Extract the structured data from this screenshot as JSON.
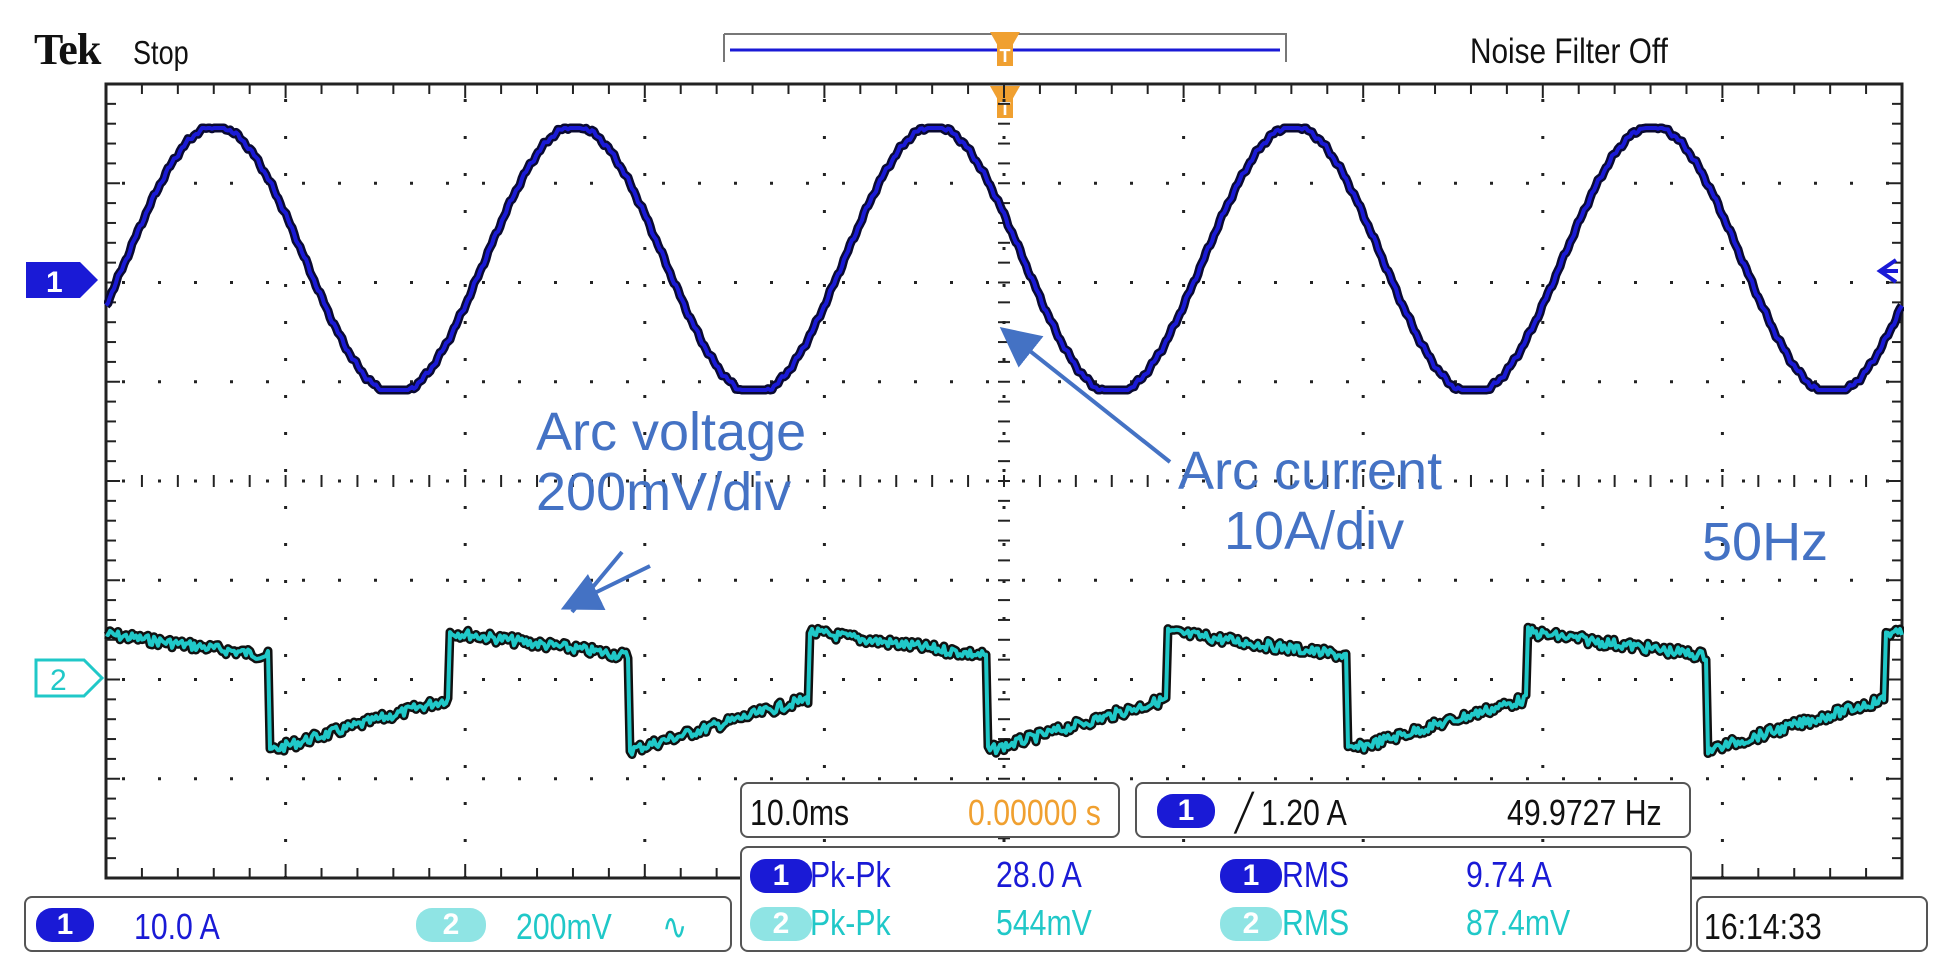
{
  "header": {
    "brand": "Tek",
    "acquisition_state": "Stop",
    "noise_filter": "Noise Filter Off"
  },
  "markers": {
    "trigger_position_label": "T",
    "ch1_marker": "1",
    "ch2_marker": "2"
  },
  "annotations": {
    "arc_voltage_line1": "Arc voltage",
    "arc_voltage_line2": "200mV/div",
    "arc_current_line1": "Arc current",
    "arc_current_line2": "10A/div",
    "frequency": "50Hz"
  },
  "timebase": {
    "horizontal_scale": "10.0ms",
    "position": "0.00000 s"
  },
  "trigger": {
    "channel": "1",
    "slope_symbol": "╱",
    "level": "1.20 A",
    "frequency": "49.9727 Hz"
  },
  "measurements": [
    {
      "channel": "1",
      "type": "Pk-Pk",
      "value": "28.0 A"
    },
    {
      "channel": "1",
      "type": "RMS",
      "value": "9.74 A"
    },
    {
      "channel": "2",
      "type": "Pk-Pk",
      "value": "544mV"
    },
    {
      "channel": "2",
      "type": "RMS",
      "value": "87.4mV"
    }
  ],
  "channels": [
    {
      "id": "1",
      "scale": "10.0 A",
      "coupling_symbol": ""
    },
    {
      "id": "2",
      "scale": "200mV",
      "coupling_symbol": "∿"
    }
  ],
  "clock": "16:14:33",
  "colors": {
    "ch1": "#1a1ad6",
    "ch2": "#20c8c8",
    "trigger": "#f0a030",
    "annotation": "#4472c4",
    "grid": "#222222"
  },
  "waveforms": {
    "ch1": {
      "shape": "sine",
      "frequency_hz": 50,
      "peak_to_peak": "28.0 A"
    },
    "ch2": {
      "shape": "square-with-ramp",
      "frequency_hz": 50,
      "peak_to_peak": "544mV"
    }
  }
}
